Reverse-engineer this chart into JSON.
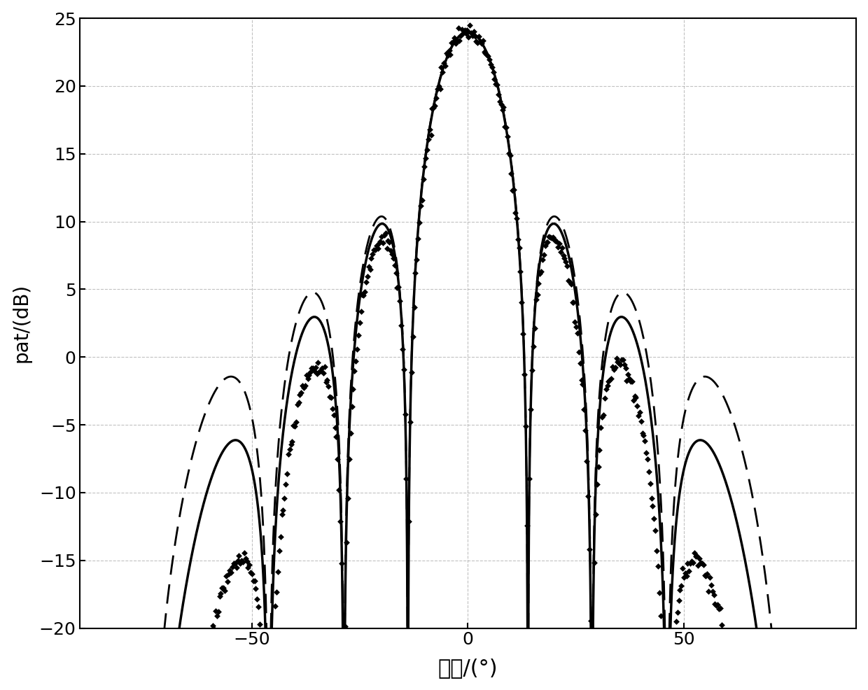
{
  "title": "",
  "xlabel": "角度/(°)",
  "ylabel": "pat/(dB)",
  "xlim": [
    -90,
    90
  ],
  "ylim": [
    -20,
    25
  ],
  "xticks": [
    -50,
    0,
    50
  ],
  "yticks": [
    -20,
    -15,
    -10,
    -5,
    0,
    5,
    10,
    15,
    20,
    25
  ],
  "grid_color": "#999999",
  "background_color": "#ffffff",
  "figsize": [
    12.4,
    9.86
  ],
  "dpi": 100,
  "solid_elem_exp": 2.5,
  "dashed_elem_exp": 1.5,
  "scatter_elem_exp": 4.5,
  "N_elements": 8,
  "d_lam": 0.52,
  "peak_dB": 24.0,
  "scatter_count": 600,
  "scatter_noise_std": 0.3
}
